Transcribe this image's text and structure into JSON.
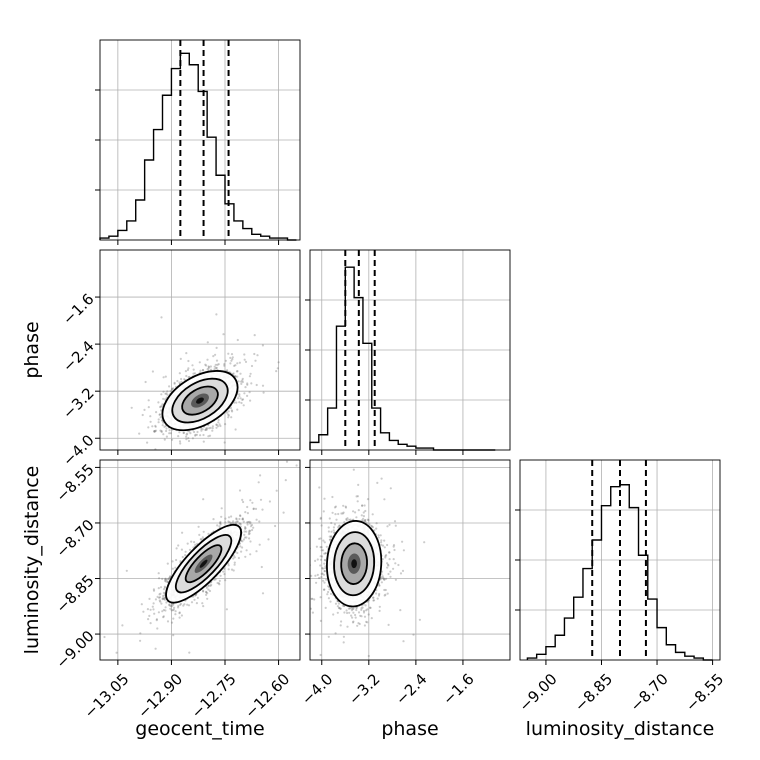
{
  "chart_data": {
    "type": "corner",
    "parameters": [
      {
        "name": "geocent_time",
        "xlabel": "geocent_time",
        "range": [
          -13.1,
          -12.54
        ],
        "ticks": [
          -13.05,
          -12.9,
          -12.75,
          -12.6
        ],
        "tick_labels": [
          "−13.05",
          "−12.90",
          "−12.75",
          "−12.60"
        ],
        "quantiles": [
          -12.875,
          -12.81,
          -12.74
        ],
        "histogram": {
          "bin_edges": [
            -13.1,
            -13.075,
            -13.05,
            -13.025,
            -13.0,
            -12.975,
            -12.95,
            -12.925,
            -12.9,
            -12.875,
            -12.85,
            -12.825,
            -12.8,
            -12.775,
            -12.75,
            -12.725,
            -12.7,
            -12.675,
            -12.65,
            -12.625,
            -12.6,
            -12.575,
            -12.55
          ],
          "counts": [
            1,
            2,
            5,
            10,
            21,
            42,
            58,
            76,
            90,
            98,
            92,
            78,
            54,
            34,
            19,
            10,
            6,
            3,
            2,
            1,
            1,
            0
          ]
        }
      },
      {
        "name": "phase",
        "ylabel": "phase",
        "xlabel": "phase",
        "range": [
          -4.2,
          -0.8
        ],
        "ticks": [
          -4.0,
          -3.2,
          -2.4,
          -1.6
        ],
        "tick_labels": [
          "−4.0",
          "−3.2",
          "−2.4",
          "−1.6"
        ],
        "quantiles": [
          -3.6,
          -3.37,
          -3.1
        ],
        "histogram": {
          "bin_edges": [
            -4.2,
            -4.05,
            -3.9,
            -3.75,
            -3.6,
            -3.45,
            -3.3,
            -3.15,
            -3.0,
            -2.85,
            -2.7,
            -2.55,
            -2.4,
            -2.25,
            -2.1,
            -1.95,
            -1.8,
            -1.65,
            -1.5,
            -1.35,
            -1.2,
            -1.05
          ],
          "counts": [
            4,
            8,
            22,
            65,
            96,
            80,
            56,
            22,
            9,
            5,
            3,
            2,
            1,
            1,
            0,
            0,
            0,
            0,
            0,
            0,
            0
          ]
        }
      },
      {
        "name": "luminosity_distance",
        "ylabel": "luminosity_distance",
        "xlabel": "luminosity_distance",
        "range": [
          -9.07,
          -8.53
        ],
        "ticks": [
          -9.0,
          -8.85,
          -8.7,
          -8.55
        ],
        "tick_labels": [
          "−9.00",
          "−8.85",
          "−8.70",
          "−8.55"
        ],
        "quantiles": [
          -8.875,
          -8.8,
          -8.73
        ],
        "histogram": {
          "bin_edges": [
            -9.05,
            -9.025,
            -9.0,
            -8.975,
            -8.95,
            -8.925,
            -8.9,
            -8.875,
            -8.85,
            -8.825,
            -8.8,
            -8.775,
            -8.75,
            -8.725,
            -8.7,
            -8.675,
            -8.65,
            -8.625,
            -8.6,
            -8.575,
            -8.55
          ],
          "counts": [
            1,
            3,
            7,
            13,
            22,
            33,
            48,
            63,
            81,
            91,
            92,
            80,
            55,
            32,
            17,
            8,
            4,
            2,
            1,
            0
          ]
        }
      }
    ],
    "scatter_2d": [
      {
        "x_param": "geocent_time",
        "y_param": "phase",
        "center": [
          -12.82,
          -3.36
        ],
        "sigma": [
          0.05,
          0.24
        ],
        "correlation": 0.45
      },
      {
        "x_param": "geocent_time",
        "y_param": "luminosity_distance",
        "center": [
          -12.81,
          -8.81
        ],
        "sigma": [
          0.05,
          0.05
        ],
        "correlation": 0.8
      },
      {
        "x_param": "phase",
        "y_param": "luminosity_distance",
        "center": [
          -3.45,
          -8.81
        ],
        "sigma": [
          0.22,
          0.055
        ],
        "correlation": 0.05
      }
    ],
    "grid": true,
    "ylim_hist": [
      0,
      105
    ]
  }
}
